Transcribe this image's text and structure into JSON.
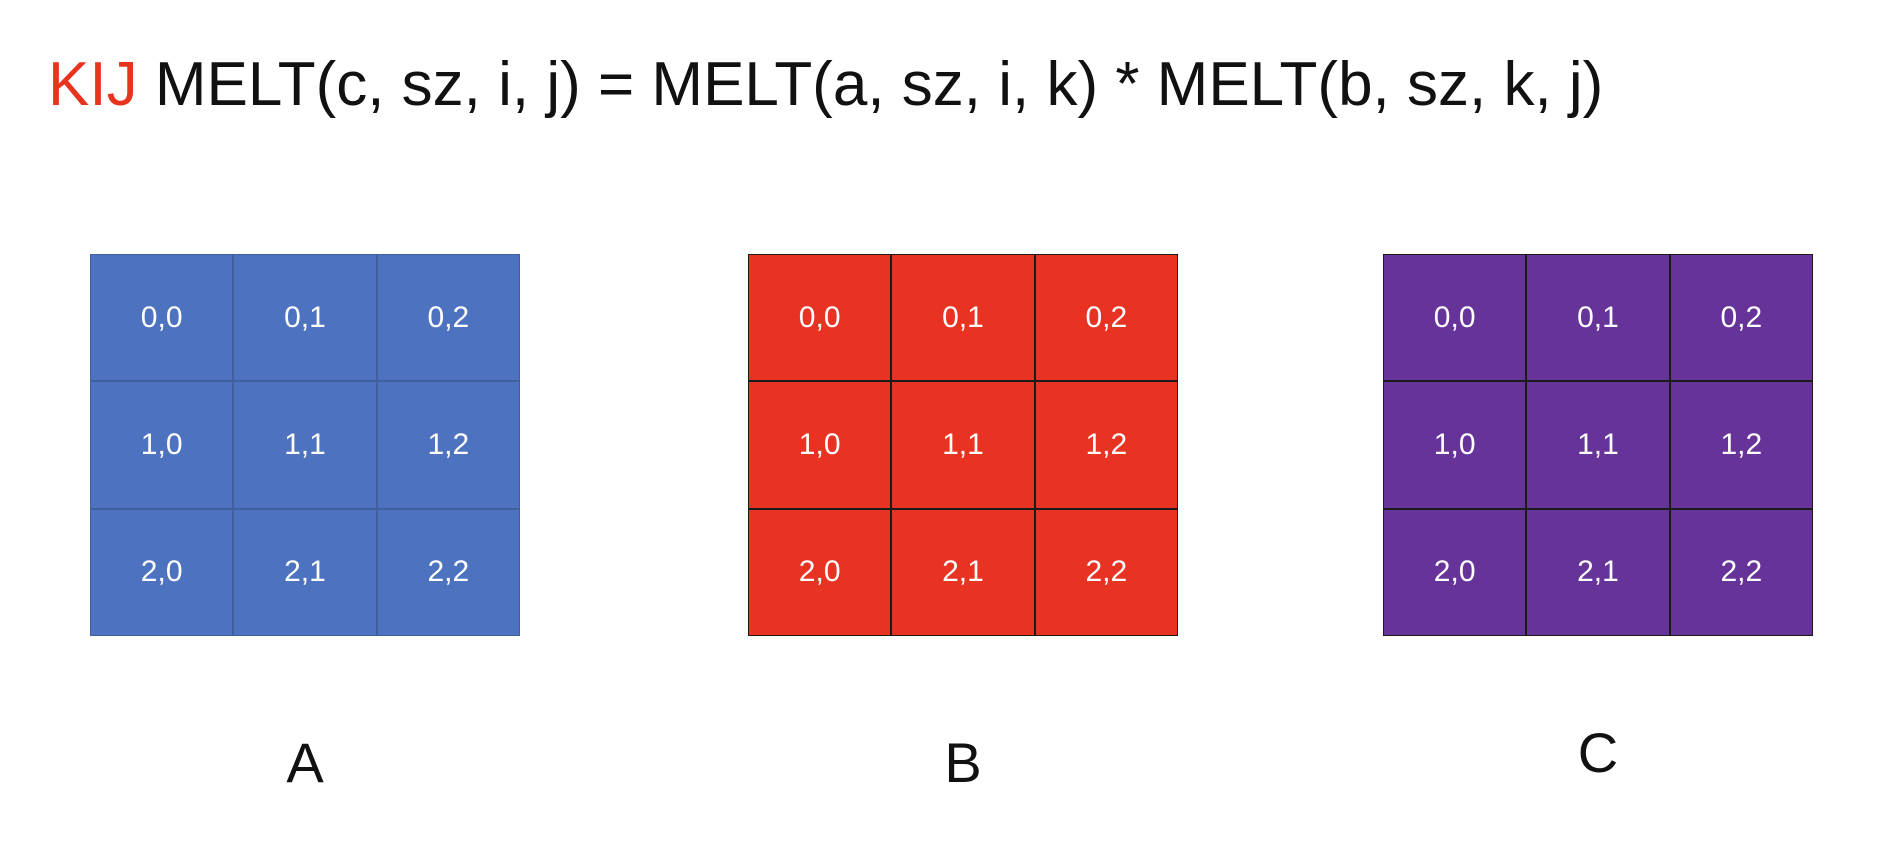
{
  "title": {
    "loop_order": "KIJ",
    "expression": "MELT(c, sz, i, j) = MELT(a, sz, i, k) * MELT(b, sz, k, j)"
  },
  "matrices": [
    {
      "label": "A",
      "color": "#4d72c0",
      "cells": [
        "0,0",
        "0,1",
        "0,2",
        "1,0",
        "1,1",
        "1,2",
        "2,0",
        "2,1",
        "2,2"
      ]
    },
    {
      "label": "B",
      "color": "#e83222",
      "cells": [
        "0,0",
        "0,1",
        "0,2",
        "1,0",
        "1,1",
        "1,2",
        "2,0",
        "2,1",
        "2,2"
      ]
    },
    {
      "label": "C",
      "color": "#663399",
      "cells": [
        "0,0",
        "0,1",
        "0,2",
        "1,0",
        "1,1",
        "1,2",
        "2,0",
        "2,1",
        "2,2"
      ]
    }
  ]
}
